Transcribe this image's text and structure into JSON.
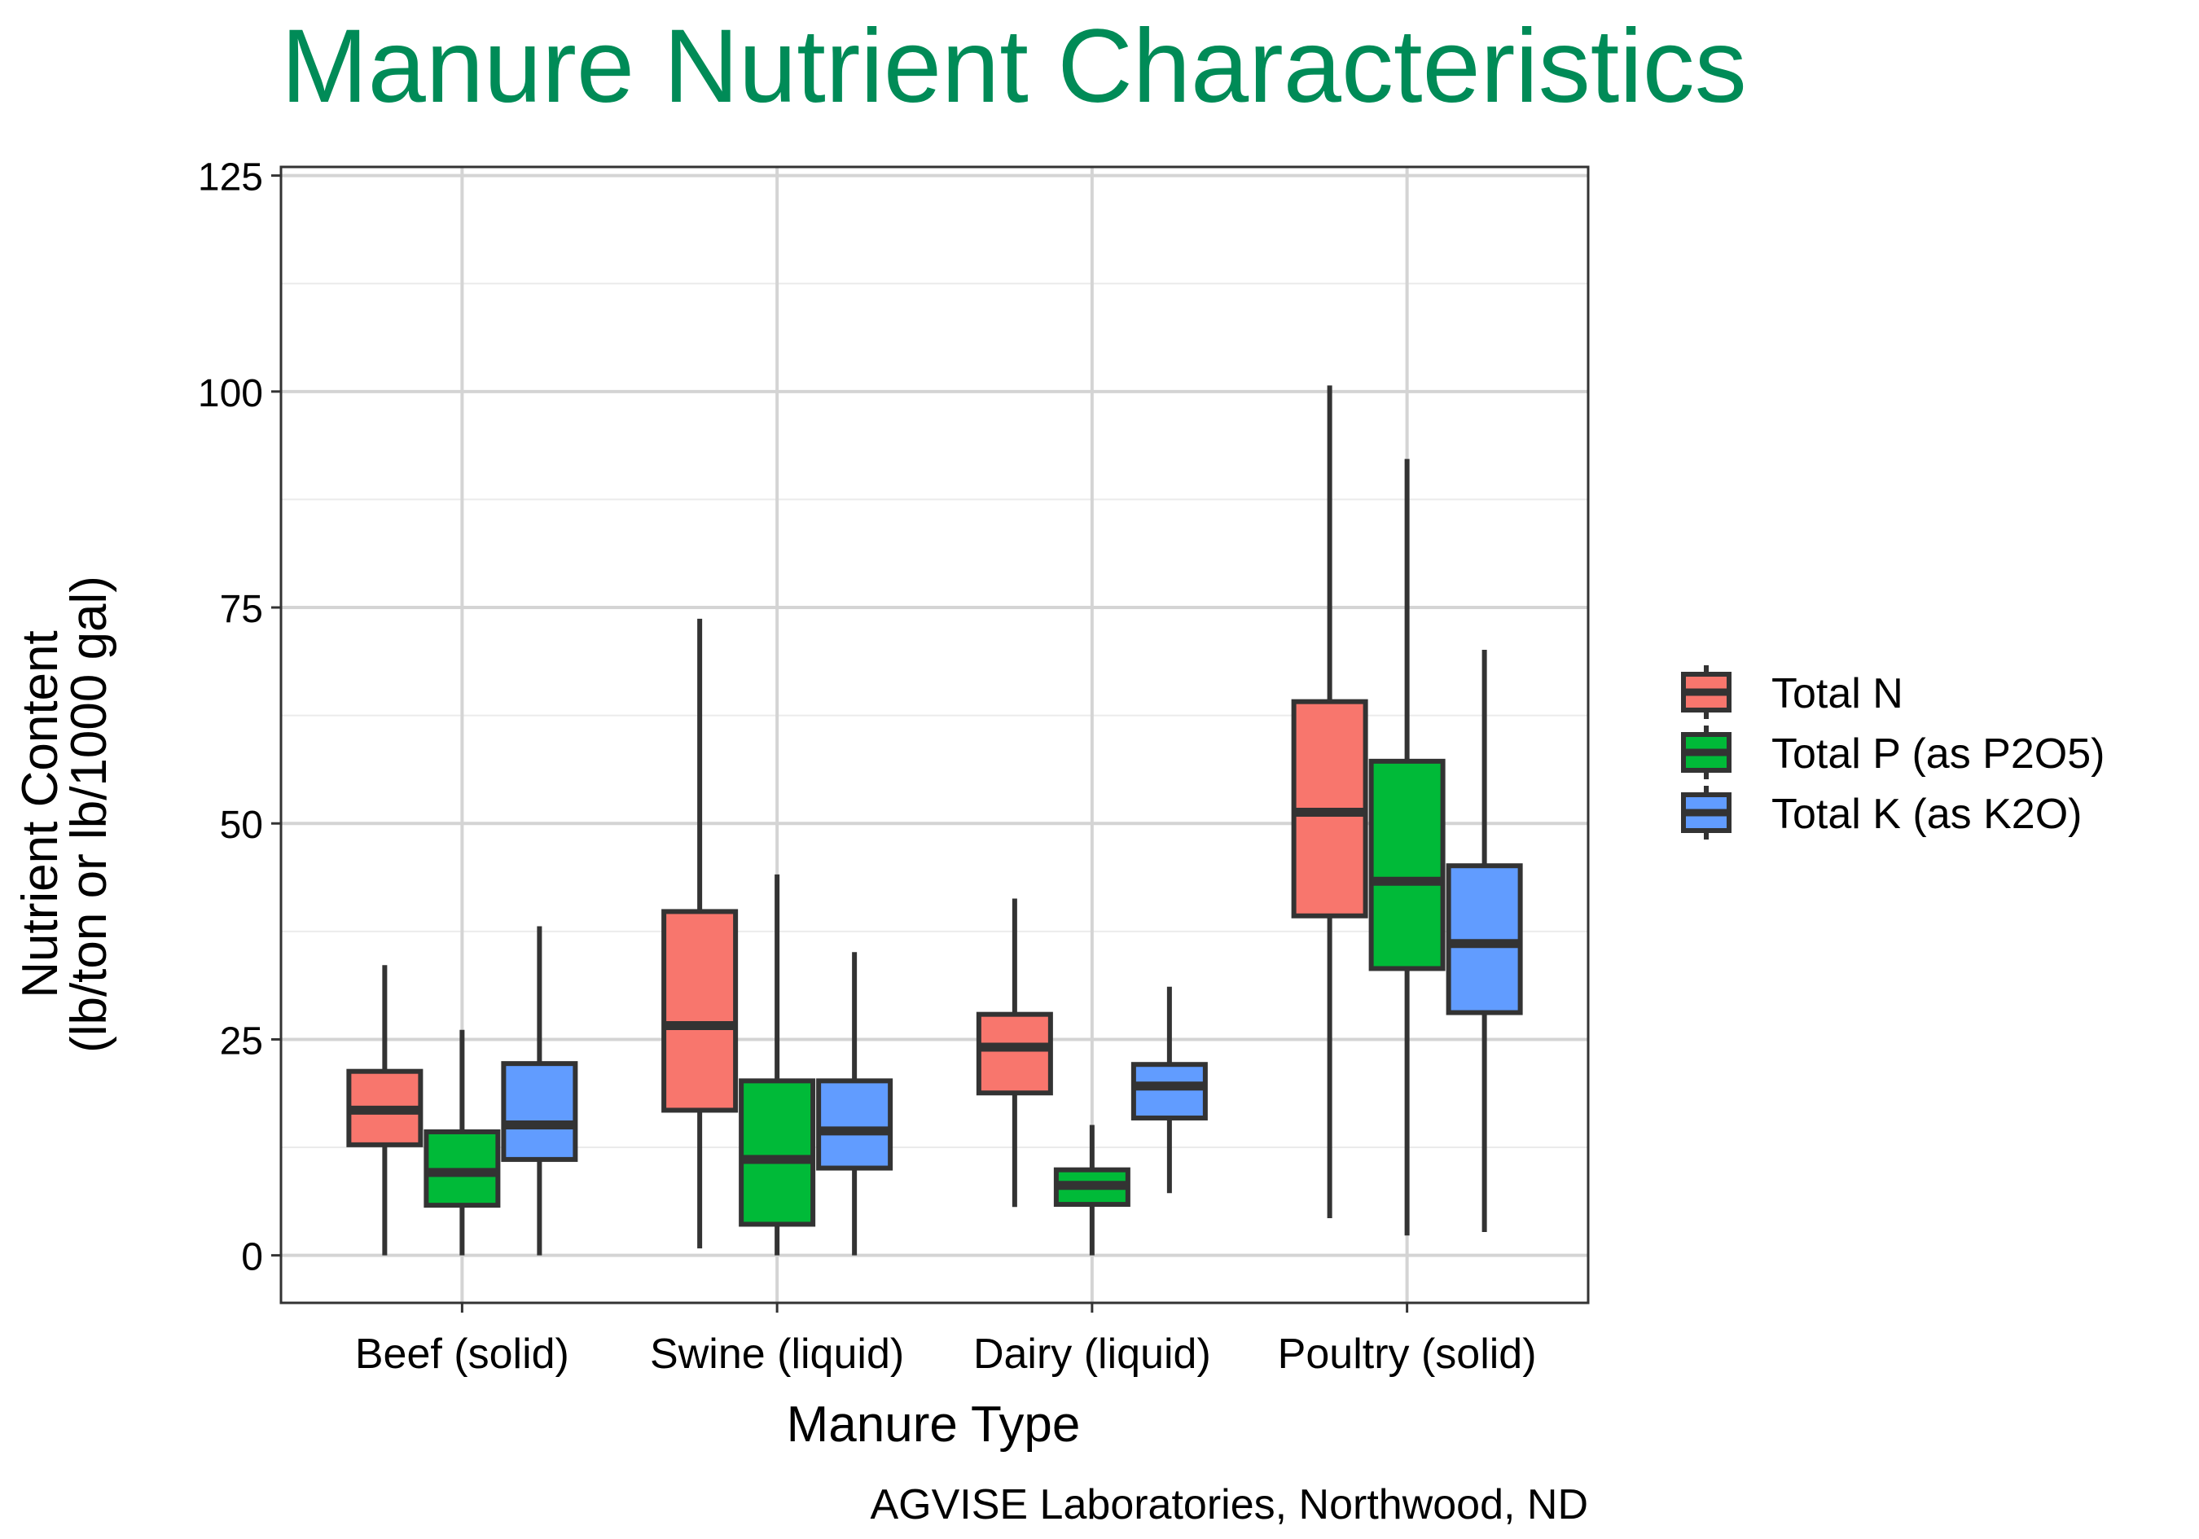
{
  "chart_data": {
    "type": "boxplot",
    "title": "Manure Nutrient Characteristics",
    "xlabel": "Manure Type",
    "ylabel_lines": [
      "Nutrient Content",
      "(lb/ton or lb/1000 gal)"
    ],
    "caption": "AGVISE Laboratories, Northwood, ND",
    "ylim": [
      -5.5,
      126
    ],
    "yticks": [
      0,
      25,
      50,
      75,
      100,
      125
    ],
    "categories": [
      "Beef (solid)",
      "Swine (liquid)",
      "Dairy (liquid)",
      "Poultry (solid)"
    ],
    "grid": true,
    "legend_position": "right",
    "series": [
      {
        "name": "Total N",
        "color": "#F8766D",
        "boxes": [
          {
            "min": 0,
            "q1": 12.8,
            "median": 16.8,
            "q3": 21.3,
            "max": 33.6
          },
          {
            "min": 0.8,
            "q1": 16.8,
            "median": 26.6,
            "q3": 39.8,
            "max": 73.7
          },
          {
            "min": 5.6,
            "q1": 18.8,
            "median": 24.1,
            "q3": 27.9,
            "max": 41.3
          },
          {
            "min": 4.3,
            "q1": 39.3,
            "median": 51.3,
            "q3": 64.1,
            "max": 100.7
          }
        ]
      },
      {
        "name": "Total P (as P2O5)",
        "color": "#00BA38",
        "boxes": [
          {
            "min": 0,
            "q1": 5.8,
            "median": 9.6,
            "q3": 14.3,
            "max": 26.1
          },
          {
            "min": 0,
            "q1": 3.6,
            "median": 11.1,
            "q3": 20.2,
            "max": 44.1
          },
          {
            "min": 0,
            "q1": 5.9,
            "median": 8.1,
            "q3": 9.9,
            "max": 15.1
          },
          {
            "min": 2.3,
            "q1": 33.2,
            "median": 43.3,
            "q3": 57.2,
            "max": 92.2
          }
        ]
      },
      {
        "name": "Total K (as K2O)",
        "color": "#619CFF",
        "boxes": [
          {
            "min": 0,
            "q1": 11.1,
            "median": 15.1,
            "q3": 22.2,
            "max": 38.1
          },
          {
            "min": 0,
            "q1": 10.1,
            "median": 14.4,
            "q3": 20.2,
            "max": 35.1
          },
          {
            "min": 7.2,
            "q1": 15.9,
            "median": 19.6,
            "q3": 22.1,
            "max": 31.1
          },
          {
            "min": 2.7,
            "q1": 28.1,
            "median": 36.1,
            "q3": 45.1,
            "max": 70.1
          }
        ]
      }
    ],
    "colors": {
      "title": "#008B57",
      "panel_border": "#333333",
      "grid_major": "#D4D4D4",
      "grid_minor": "#EBEBEB",
      "box_stroke": "#333333"
    }
  }
}
